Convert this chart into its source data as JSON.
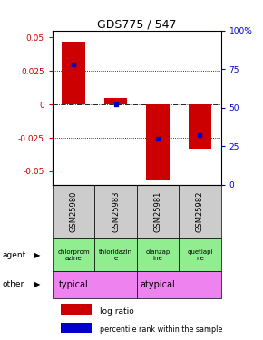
{
  "title": "GDS775 / 547",
  "samples": [
    "GSM25980",
    "GSM25983",
    "GSM25981",
    "GSM25982"
  ],
  "log_ratios": [
    0.047,
    0.005,
    -0.057,
    -0.033
  ],
  "percentile_ranks": [
    0.78,
    0.52,
    0.3,
    0.32
  ],
  "ylim": [
    -0.06,
    0.055
  ],
  "yticks_left": [
    -0.05,
    -0.025,
    0,
    0.025,
    0.05
  ],
  "yticks_right_pct": [
    0,
    25,
    50,
    75,
    100
  ],
  "yticks_right_labels": [
    "0",
    "25",
    "50",
    "75",
    "100%"
  ],
  "agents": [
    "chlorprom\nazine",
    "thioridazin\ne",
    "olanzap\nine",
    "quetiapi\nne"
  ],
  "other_groups": [
    [
      "typical",
      2
    ],
    [
      "atypical",
      2
    ]
  ],
  "other_color": "#ee82ee",
  "agent_color": "#90ee90",
  "bar_color": "#cc0000",
  "dot_color": "#0000cc",
  "sample_bg_color": "#cccccc",
  "left_label_color": "#cc0000",
  "right_label_color": "#0000cc"
}
